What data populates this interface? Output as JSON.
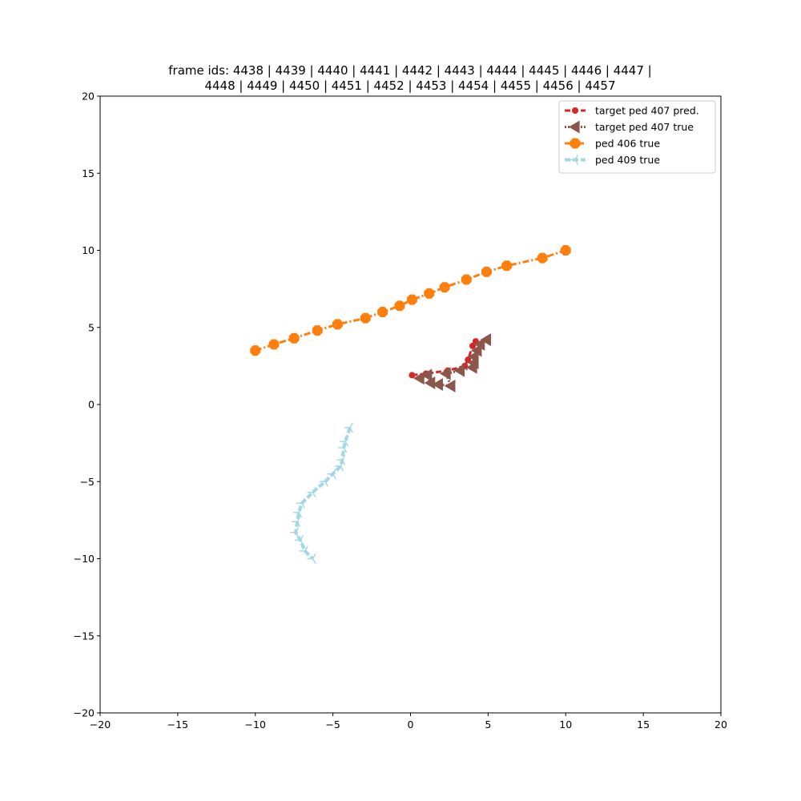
{
  "chart_data": {
    "type": "line",
    "title_lines": [
      "frame ids: 4438 | 4439 | 4440 | 4441 | 4442 | 4443 | 4444 | 4445 | 4446 | 4447 |",
      "4448 | 4449 | 4450 | 4451 | 4452 | 4453 | 4454 | 4455 | 4456 | 4457"
    ],
    "xlabel": "",
    "ylabel": "",
    "xlim": [
      -20,
      20
    ],
    "ylim": [
      -20,
      20
    ],
    "xticks": [
      -20,
      -15,
      -10,
      -5,
      0,
      5,
      10,
      15,
      20
    ],
    "yticks": [
      -20,
      -15,
      -10,
      -5,
      0,
      5,
      10,
      15,
      20
    ],
    "xtick_labels": [
      "−20",
      "−15",
      "−10",
      "−5",
      "0",
      "5",
      "10",
      "15",
      "20"
    ],
    "ytick_labels": [
      "−20",
      "−15",
      "−10",
      "−5",
      "0",
      "5",
      "10",
      "15",
      "20"
    ],
    "grid": false,
    "legend_position": "top-right",
    "series": [
      {
        "name": "target ped 407 pred.",
        "color": "#d62728",
        "marker": "circle-small",
        "linestyle": "dashed",
        "x": [
          0.1,
          1.0,
          2.4,
          3.5,
          3.7,
          4.0,
          4.2
        ],
        "y": [
          1.9,
          2.0,
          2.2,
          2.5,
          2.9,
          3.8,
          4.1
        ]
      },
      {
        "name": "target ped 407 true",
        "color": "#8c564b",
        "marker": "triangle-left",
        "linestyle": "dotted",
        "x": [
          0.6,
          1.1,
          1.3,
          1.8,
          2.6,
          2.3,
          3.2,
          4.0,
          4.1,
          4.1,
          4.3,
          4.5,
          4.9
        ],
        "y": [
          1.7,
          1.9,
          1.4,
          1.3,
          1.2,
          2.0,
          2.2,
          2.4,
          2.7,
          3.1,
          3.5,
          3.9,
          4.2
        ]
      },
      {
        "name": "ped 406 true",
        "color": "#ff7f0e",
        "marker": "octagon",
        "linestyle": "dashdot",
        "x": [
          -10.0,
          -8.8,
          -7.5,
          -6.0,
          -4.7,
          -2.9,
          -1.8,
          -0.7,
          0.1,
          1.2,
          2.2,
          3.6,
          4.9,
          6.2,
          8.5,
          10.0
        ],
        "y": [
          3.5,
          3.9,
          4.3,
          4.8,
          5.2,
          5.6,
          6.0,
          6.4,
          6.8,
          7.2,
          7.6,
          8.1,
          8.6,
          9.0,
          9.5,
          10.0
        ]
      },
      {
        "name": "ped 409 true",
        "color": "#a0d8e6",
        "marker": "tri-left",
        "linestyle": "dashed",
        "x": [
          -3.9,
          -4.2,
          -4.3,
          -4.4,
          -4.5,
          -5.0,
          -5.5,
          -6.3,
          -7.0,
          -7.2,
          -7.3,
          -7.4,
          -7.1,
          -6.8,
          -6.3
        ],
        "y": [
          -1.5,
          -2.4,
          -2.8,
          -3.6,
          -4.0,
          -4.5,
          -5.0,
          -5.7,
          -6.4,
          -7.0,
          -7.6,
          -8.3,
          -8.8,
          -9.5,
          -10.0
        ]
      }
    ]
  }
}
